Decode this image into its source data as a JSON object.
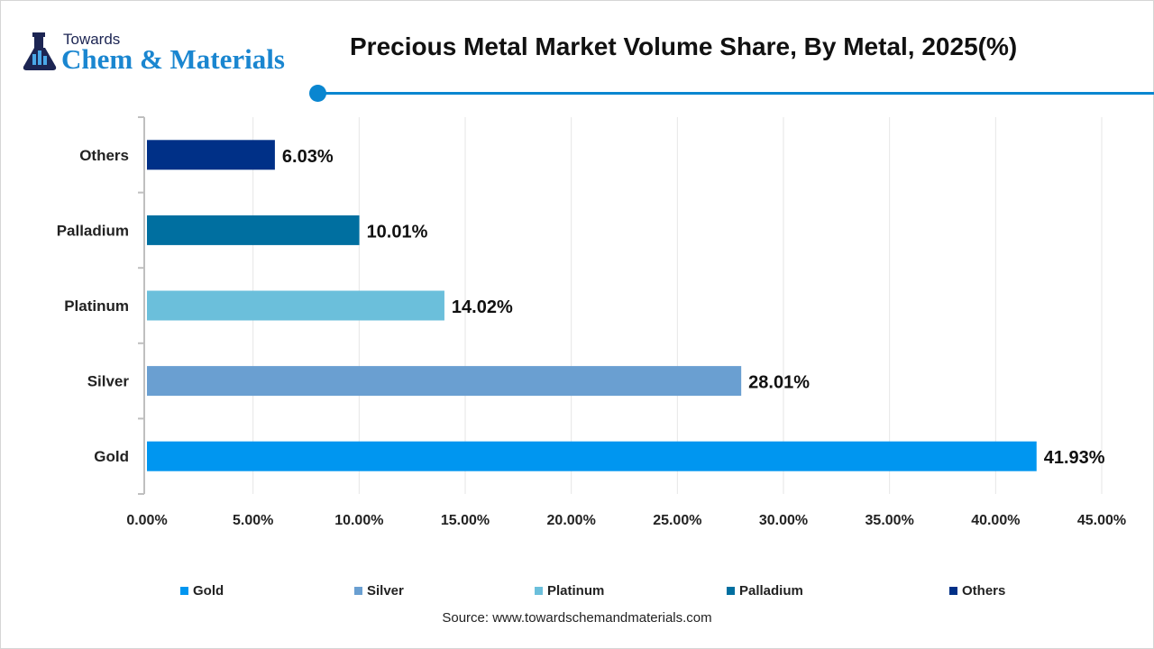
{
  "logo": {
    "line1": "Towards",
    "line2": "Chem & Materials"
  },
  "chart_data": {
    "type": "bar",
    "orientation": "horizontal",
    "title": "Precious Metal Market Volume Share, By Metal, 2025(%)",
    "categories": [
      "Gold",
      "Silver",
      "Platinum",
      "Palladium",
      "Others"
    ],
    "values": [
      41.93,
      28.01,
      14.02,
      10.01,
      6.03
    ],
    "data_labels": [
      "41.93%",
      "28.01%",
      "14.02%",
      "10.01%",
      "6.03%"
    ],
    "colors": [
      "#0096f0",
      "#6a9fd1",
      "#6bbfdb",
      "#006fa0",
      "#003087"
    ],
    "xlim": [
      0,
      45
    ],
    "x_ticks": [
      0,
      5,
      10,
      15,
      20,
      25,
      30,
      35,
      40,
      45
    ],
    "x_tick_labels": [
      "0.00%",
      "5.00%",
      "10.00%",
      "15.00%",
      "20.00%",
      "25.00%",
      "30.00%",
      "35.00%",
      "40.00%",
      "45.00%"
    ],
    "grid": "vertical",
    "legend": {
      "position": "bottom",
      "entries": [
        "Gold",
        "Silver",
        "Platinum",
        "Palladium",
        "Others"
      ]
    }
  },
  "source": "Source: www.towardschemandmaterials.com"
}
